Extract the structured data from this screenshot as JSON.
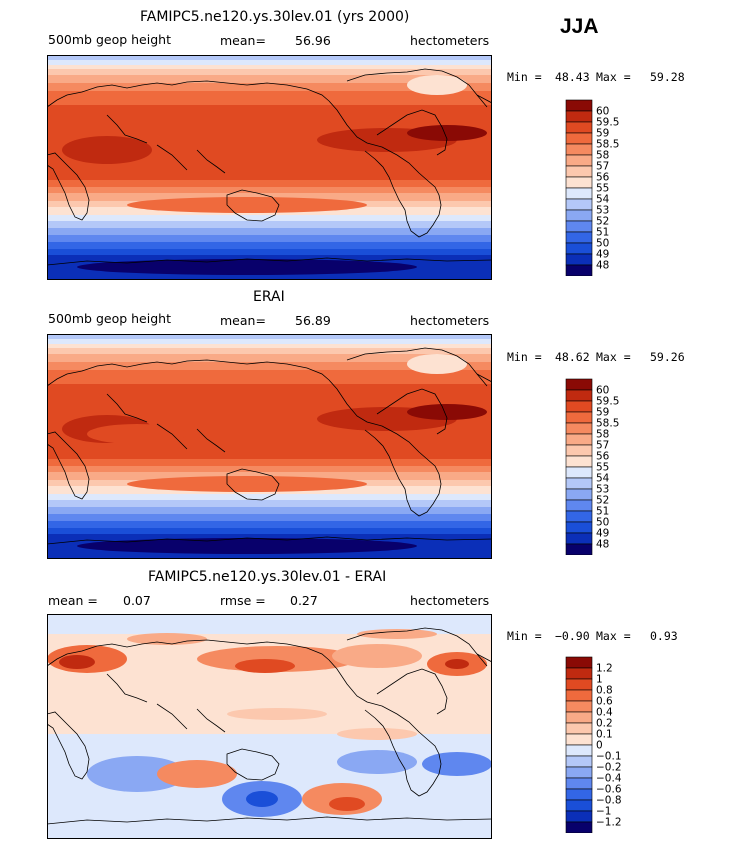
{
  "season": "JJA",
  "colors": {
    "full": [
      "#08006b",
      "#0b2fb8",
      "#1a4fd8",
      "#3366e6",
      "#5f87ef",
      "#8aa8f3",
      "#b4c8f8",
      "#dde8fc",
      "#fde2d2",
      "#fcc8ae",
      "#f9aa87",
      "#f58a60",
      "#ef6a3d",
      "#e04a22",
      "#c02a10",
      "#8a0a05"
    ],
    "diff": [
      "#08006b",
      "#0b2fb8",
      "#1a4fd8",
      "#3366e6",
      "#5f87ef",
      "#8aa8f3",
      "#b4c8f8",
      "#dde8fc",
      "#fde2d2",
      "#fcc8ae",
      "#f9aa87",
      "#f58a60",
      "#ef6a3d",
      "#e04a22",
      "#c02a10",
      "#8a0a05"
    ]
  },
  "chart_data": [
    {
      "type": "heatmap",
      "title": "FAMIPC5.ne120.ys.30lev.01 (yrs 2000)",
      "left_label": "500mb geop height",
      "stat_label": "mean=",
      "stat_value": "56.96",
      "units": "hectometers",
      "min_label": "Min =",
      "min_value": "48.43",
      "max_label": "Max =",
      "max_value": "59.28",
      "colorbar_labels": [
        "60",
        "59.5",
        "59",
        "58.5",
        "58",
        "57",
        "56",
        "55",
        "54",
        "53",
        "52",
        "51",
        "50",
        "49",
        "48"
      ],
      "grid": false
    },
    {
      "type": "heatmap",
      "title": "ERAI",
      "left_label": "500mb geop height",
      "stat_label": "mean=",
      "stat_value": "56.89",
      "units": "hectometers",
      "min_label": "Min =",
      "min_value": "48.62",
      "max_label": "Max =",
      "max_value": "59.26",
      "colorbar_labels": [
        "60",
        "59.5",
        "59",
        "58.5",
        "58",
        "57",
        "56",
        "55",
        "54",
        "53",
        "52",
        "51",
        "50",
        "49",
        "48"
      ],
      "grid": false
    },
    {
      "type": "heatmap",
      "title": "FAMIPC5.ne120.ys.30lev.01 - ERAI",
      "left_label": "mean =",
      "left_value": "0.07",
      "stat_label": "rmse =",
      "stat_value": "0.27",
      "units": "hectometers",
      "min_label": "Min =",
      "min_value": "−0.90",
      "max_label": "Max =",
      "max_value": "0.93",
      "colorbar_labels": [
        "1.2",
        "1",
        "0.8",
        "0.6",
        "0.4",
        "0.2",
        "0.1",
        "0",
        "−0.1",
        "−0.2",
        "−0.4",
        "−0.6",
        "−0.8",
        "−1",
        "−1.2"
      ],
      "grid": false
    }
  ]
}
